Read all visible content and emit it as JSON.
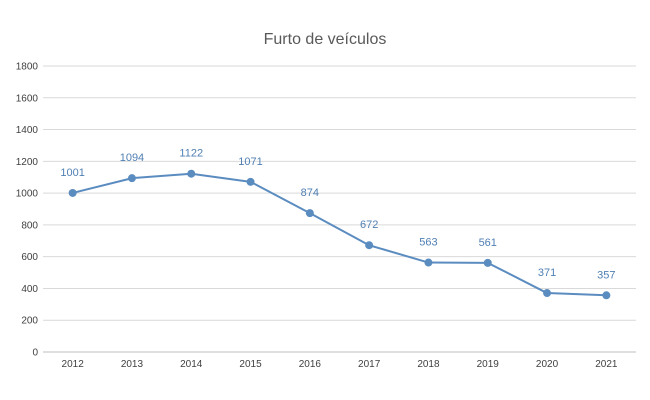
{
  "chart_data": {
    "type": "line",
    "title": "Furto de veículos",
    "xlabel": "",
    "ylabel": "",
    "categories": [
      "2012",
      "2013",
      "2014",
      "2015",
      "2016",
      "2017",
      "2018",
      "2019",
      "2020",
      "2021"
    ],
    "values": [
      1001,
      1094,
      1122,
      1071,
      874,
      672,
      563,
      561,
      371,
      357
    ],
    "data_labels": [
      "1001",
      "1094",
      "1122",
      "1071",
      "874",
      "672",
      "563",
      "561",
      "371",
      "357"
    ],
    "ylim": [
      0,
      1800
    ],
    "yticks": [
      0,
      200,
      400,
      600,
      800,
      1000,
      1200,
      1400,
      1600,
      1800
    ],
    "ytick_labels": [
      "0",
      "200",
      "400",
      "600",
      "800",
      "1000",
      "1200",
      "1400",
      "1600",
      "1800"
    ],
    "grid": true,
    "legend": "none",
    "colors": {
      "series": "#5b8cc0",
      "data_label": "#4f7fb3"
    }
  }
}
